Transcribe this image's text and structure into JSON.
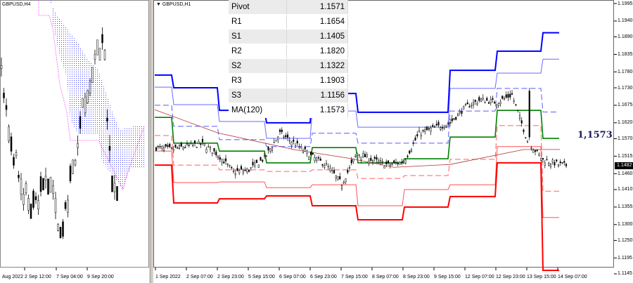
{
  "left_panel": {
    "symbol": "GBPUSD,H4",
    "time_labels": [
      "Aug 2022",
      "2 Sep 12:00",
      "7 Sep 04:00",
      "9 Sep 20:00"
    ]
  },
  "right_panel": {
    "symbol": "GBPUSD,H1",
    "dropdown_icon": "triangle-down-icon"
  },
  "pivot_table": [
    {
      "label": "Pivot",
      "value": "1.1571"
    },
    {
      "label": "R1",
      "value": "1.1654"
    },
    {
      "label": "S1",
      "value": "1.1405"
    },
    {
      "label": "R2",
      "value": "1.1820"
    },
    {
      "label": "S2",
      "value": "1.1322"
    },
    {
      "label": "R3",
      "value": "1.1903"
    },
    {
      "label": "S3",
      "value": "1.1156"
    },
    {
      "label": "MA(120)",
      "value": "1.1573"
    }
  ],
  "ma_label": "1,1573",
  "last_price": "1.1482",
  "colors": {
    "resistance": "#0000ff",
    "support": "#ff0000",
    "pivot": "#008000",
    "ma": "#b03030",
    "candle": "#000000",
    "cloud_a": "#4040ff",
    "cloud_b": "#ff00ff"
  },
  "chart_data": {
    "type": "candlestick",
    "title": "",
    "x_tick_labels": [
      "1 Sep 2022",
      "2 Sep 07:00",
      "2 Sep 23:00",
      "5 Sep 15:00",
      "6 Sep 07:00",
      "6 Sep 23:00",
      "7 Sep 15:00",
      "8 Sep 07:00",
      "8 Sep 23:00",
      "9 Sep 15:00",
      "12 Sep 07:00",
      "12 Sep 23:00",
      "13 Sep 15:00",
      "14 Sep 07:00"
    ],
    "y_tick_labels": [
      "1.1995",
      "1.1940",
      "1.1890",
      "1.1835",
      "1.1780",
      "1.1730",
      "1.1675",
      "1.1620",
      "1.1570",
      "1.1515",
      "1.1460",
      "1.1410",
      "1.1355",
      "1.1300",
      "1.1250",
      "1.1195",
      "1.1145"
    ],
    "ylim": [
      1.1145,
      1.1995
    ],
    "price_path_every_8_bars": [
      1.1542,
      1.1536,
      1.1547,
      1.1553,
      1.152,
      1.1465,
      1.1472,
      1.1509,
      1.1587,
      1.1553,
      1.1516,
      1.1487,
      1.1428,
      1.1525,
      1.1503,
      1.1487,
      1.1498,
      1.1587,
      1.1604,
      1.162,
      1.167,
      1.1693,
      1.1684,
      1.1708,
      1.1564,
      1.1503,
      1.149,
      1.1482
    ],
    "daily_levels": {
      "R3": [
        1.177,
        1.173,
        1.1659,
        1.162,
        1.1712,
        1.1653,
        1.1653,
        1.1785,
        1.1845,
        1.1903
      ],
      "R2": [
        1.1732,
        1.1677,
        1.1624,
        1.1571,
        1.1657,
        1.1606,
        1.1606,
        1.1728,
        1.1776,
        1.182
      ],
      "R1": [
        1.1675,
        1.1609,
        1.1567,
        1.1545,
        1.1587,
        1.1556,
        1.1556,
        1.1657,
        1.1728,
        1.1654
      ],
      "Pivot": [
        1.1637,
        1.1556,
        1.1531,
        1.1494,
        1.1542,
        1.1494,
        1.1507,
        1.1575,
        1.1659,
        1.1571
      ],
      "S1": [
        1.158,
        1.1487,
        1.1472,
        1.1467,
        1.1472,
        1.1445,
        1.1454,
        1.1505,
        1.1611,
        1.1405
      ],
      "S2": [
        1.1531,
        1.1432,
        1.1434,
        1.1416,
        1.1425,
        1.1359,
        1.141,
        1.1425,
        1.1545,
        1.1322
      ],
      "S3": [
        1.1487,
        1.1368,
        1.1381,
        1.139,
        1.1359,
        1.1315,
        1.1355,
        1.1388,
        1.1494,
        1.1156
      ]
    },
    "ma120_path": [
      1.1661,
      1.1588,
      1.1535,
      1.1507,
      1.148,
      1.1489,
      1.1536,
      1.1536
    ]
  }
}
